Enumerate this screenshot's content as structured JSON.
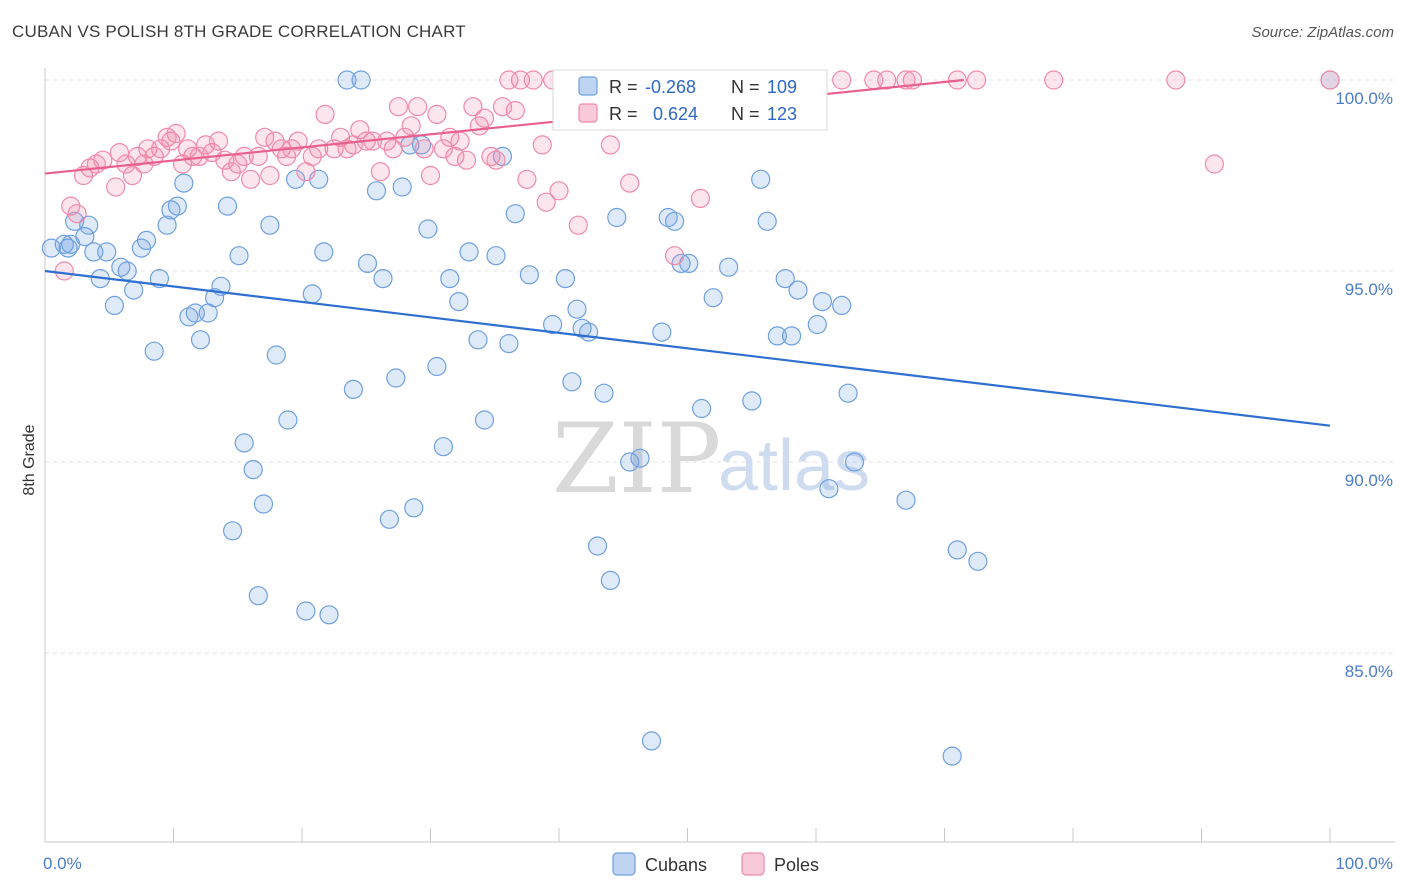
{
  "title": "CUBAN VS POLISH 8TH GRADE CORRELATION CHART",
  "source": "Source: ZipAtlas.com",
  "watermark": {
    "zip": "ZIP",
    "atlas": "atlas"
  },
  "colors": {
    "cubans": "#6fa0e0",
    "cubans_fill": "rgba(111,160,224,0.22)",
    "cubans_line": "#2e6fd0",
    "poles": "#f08aaa",
    "poles_fill": "rgba(240,138,170,0.22)",
    "poles_line": "#e8608e",
    "grid": "#e3e3e3",
    "tick_text": "#4a7cc9"
  },
  "chart_data": {
    "type": "scatter",
    "title": "CUBAN VS POLISH 8TH GRADE CORRELATION CHART",
    "xlabel": "",
    "ylabel": "8th Grade",
    "xlim": [
      0,
      100
    ],
    "ylim": [
      80.5,
      100.8
    ],
    "x_tick_labels": [
      "0.0%",
      "100.0%"
    ],
    "y_ticks": [
      85,
      90,
      95,
      100
    ],
    "y_tick_labels": [
      "85.0%",
      "90.0%",
      "95.0%",
      "100.0%"
    ],
    "grid": true,
    "legend_position": "bottom-center",
    "stats": [
      {
        "series": "Cubans",
        "r_label": "R =",
        "r": "-0.268",
        "n_label": "N =",
        "n": "109"
      },
      {
        "series": "Poles",
        "r_label": "R =",
        "r": "0.624",
        "n_label": "N =",
        "n": "123"
      }
    ],
    "series": [
      {
        "name": "Cubans",
        "trend": {
          "x": [
            0,
            100
          ],
          "y": [
            95.0,
            90.95
          ]
        },
        "points": [
          [
            0.5,
            95.6
          ],
          [
            1.5,
            95.7
          ],
          [
            1.8,
            95.6
          ],
          [
            2.3,
            96.3
          ],
          [
            3.1,
            95.9
          ],
          [
            3.4,
            96.2
          ],
          [
            3.8,
            95.5
          ],
          [
            4.3,
            94.8
          ],
          [
            4.8,
            95.5
          ],
          [
            5.4,
            94.1
          ],
          [
            5.9,
            95.1
          ],
          [
            6.4,
            95.0
          ],
          [
            6.9,
            94.5
          ],
          [
            7.5,
            95.6
          ],
          [
            7.9,
            95.8
          ],
          [
            8.5,
            92.9
          ],
          [
            8.9,
            94.8
          ],
          [
            9.5,
            96.2
          ],
          [
            9.8,
            96.6
          ],
          [
            10.3,
            96.7
          ],
          [
            10.8,
            97.3
          ],
          [
            11.2,
            93.8
          ],
          [
            11.7,
            93.9
          ],
          [
            12.1,
            93.2
          ],
          [
            12.7,
            93.9
          ],
          [
            13.2,
            94.3
          ],
          [
            13.7,
            94.6
          ],
          [
            14.2,
            96.7
          ],
          [
            14.6,
            88.2
          ],
          [
            15.1,
            95.4
          ],
          [
            15.5,
            90.5
          ],
          [
            16.2,
            89.8
          ],
          [
            16.6,
            86.5
          ],
          [
            17.0,
            88.9
          ],
          [
            17.5,
            96.2
          ],
          [
            18.0,
            92.8
          ],
          [
            18.9,
            91.1
          ],
          [
            19.5,
            97.4
          ],
          [
            20.3,
            86.1
          ],
          [
            20.8,
            94.4
          ],
          [
            21.3,
            97.4
          ],
          [
            21.7,
            95.5
          ],
          [
            22.1,
            86.0
          ],
          [
            23.5,
            100.0
          ],
          [
            24.0,
            91.9
          ],
          [
            24.6,
            100.0
          ],
          [
            25.1,
            95.2
          ],
          [
            25.8,
            97.1
          ],
          [
            26.3,
            94.8
          ],
          [
            26.8,
            88.5
          ],
          [
            27.3,
            92.2
          ],
          [
            27.8,
            97.2
          ],
          [
            28.4,
            98.3
          ],
          [
            28.7,
            88.8
          ],
          [
            29.3,
            98.3
          ],
          [
            29.8,
            96.1
          ],
          [
            30.5,
            92.5
          ],
          [
            31.0,
            90.4
          ],
          [
            31.5,
            94.8
          ],
          [
            32.2,
            94.2
          ],
          [
            33.0,
            95.5
          ],
          [
            33.7,
            93.2
          ],
          [
            34.2,
            91.1
          ],
          [
            35.1,
            95.4
          ],
          [
            35.6,
            98.0
          ],
          [
            36.1,
            93.1
          ],
          [
            36.6,
            96.5
          ],
          [
            37.7,
            94.9
          ],
          [
            39.5,
            93.6
          ],
          [
            40.5,
            94.8
          ],
          [
            41.0,
            92.1
          ],
          [
            41.4,
            94.0
          ],
          [
            41.8,
            93.5
          ],
          [
            42.3,
            93.4
          ],
          [
            43.0,
            87.8
          ],
          [
            43.5,
            91.8
          ],
          [
            44.0,
            86.9
          ],
          [
            44.5,
            96.4
          ],
          [
            45.5,
            90.0
          ],
          [
            46.3,
            90.1
          ],
          [
            47.2,
            82.7
          ],
          [
            48.0,
            93.4
          ],
          [
            48.5,
            96.4
          ],
          [
            49.0,
            96.3
          ],
          [
            49.5,
            95.2
          ],
          [
            50.1,
            95.2
          ],
          [
            51.1,
            91.4
          ],
          [
            52.0,
            94.3
          ],
          [
            53.2,
            95.1
          ],
          [
            55.0,
            91.6
          ],
          [
            55.7,
            97.4
          ],
          [
            56.2,
            96.3
          ],
          [
            57.0,
            93.3
          ],
          [
            57.6,
            94.8
          ],
          [
            58.1,
            93.3
          ],
          [
            58.6,
            94.5
          ],
          [
            60.1,
            93.6
          ],
          [
            60.5,
            94.2
          ],
          [
            61.0,
            89.3
          ],
          [
            62.0,
            94.1
          ],
          [
            62.5,
            91.8
          ],
          [
            63.0,
            90.0
          ],
          [
            67.0,
            89.0
          ],
          [
            70.6,
            82.3
          ],
          [
            71.0,
            87.7
          ],
          [
            72.6,
            87.4
          ],
          [
            100.0,
            100.0
          ],
          [
            2.0,
            95.7
          ]
        ]
      },
      {
        "name": "Poles",
        "trend": {
          "x": [
            0,
            71.5
          ],
          "y": [
            97.55,
            100.0
          ]
        },
        "points": [
          [
            1.5,
            95.0
          ],
          [
            2.0,
            96.7
          ],
          [
            2.5,
            96.5
          ],
          [
            3.0,
            97.5
          ],
          [
            3.5,
            97.7
          ],
          [
            4.0,
            97.8
          ],
          [
            4.5,
            97.9
          ],
          [
            5.5,
            97.2
          ],
          [
            5.8,
            98.1
          ],
          [
            6.3,
            97.8
          ],
          [
            6.8,
            97.5
          ],
          [
            7.2,
            98.0
          ],
          [
            7.7,
            97.8
          ],
          [
            8.0,
            98.2
          ],
          [
            8.5,
            98.0
          ],
          [
            9.0,
            98.2
          ],
          [
            9.5,
            98.5
          ],
          [
            9.8,
            98.4
          ],
          [
            10.2,
            98.6
          ],
          [
            10.7,
            97.8
          ],
          [
            11.1,
            98.2
          ],
          [
            11.5,
            98.0
          ],
          [
            12.0,
            98.0
          ],
          [
            12.5,
            98.3
          ],
          [
            13.0,
            98.1
          ],
          [
            13.5,
            98.4
          ],
          [
            14.0,
            97.9
          ],
          [
            14.5,
            97.6
          ],
          [
            15.0,
            97.8
          ],
          [
            15.5,
            98.0
          ],
          [
            16.0,
            97.4
          ],
          [
            16.6,
            98.0
          ],
          [
            17.1,
            98.5
          ],
          [
            17.5,
            97.5
          ],
          [
            17.9,
            98.4
          ],
          [
            18.4,
            98.2
          ],
          [
            18.8,
            98.0
          ],
          [
            19.2,
            98.2
          ],
          [
            19.7,
            98.4
          ],
          [
            20.3,
            97.6
          ],
          [
            20.8,
            98.0
          ],
          [
            21.3,
            98.2
          ],
          [
            21.8,
            99.1
          ],
          [
            22.5,
            98.2
          ],
          [
            23.0,
            98.5
          ],
          [
            23.5,
            98.2
          ],
          [
            24.0,
            98.3
          ],
          [
            24.5,
            98.7
          ],
          [
            25.0,
            98.4
          ],
          [
            25.5,
            98.4
          ],
          [
            26.1,
            97.6
          ],
          [
            26.6,
            98.4
          ],
          [
            27.1,
            98.2
          ],
          [
            27.5,
            99.3
          ],
          [
            28.0,
            98.5
          ],
          [
            28.5,
            98.8
          ],
          [
            29.0,
            99.3
          ],
          [
            29.5,
            98.2
          ],
          [
            30.0,
            97.5
          ],
          [
            30.5,
            99.1
          ],
          [
            31.0,
            98.2
          ],
          [
            31.5,
            98.5
          ],
          [
            31.9,
            98.0
          ],
          [
            32.3,
            98.4
          ],
          [
            32.8,
            97.9
          ],
          [
            33.3,
            99.3
          ],
          [
            33.8,
            98.8
          ],
          [
            34.2,
            99.0
          ],
          [
            34.7,
            98.0
          ],
          [
            35.1,
            97.9
          ],
          [
            35.6,
            99.3
          ],
          [
            36.1,
            100.0
          ],
          [
            36.6,
            99.2
          ],
          [
            37.0,
            100.0
          ],
          [
            37.5,
            97.4
          ],
          [
            38.0,
            100.0
          ],
          [
            38.7,
            98.3
          ],
          [
            39.0,
            96.8
          ],
          [
            39.5,
            100.0
          ],
          [
            40.0,
            97.1
          ],
          [
            40.5,
            100.0
          ],
          [
            41.0,
            99.6
          ],
          [
            41.5,
            96.2
          ],
          [
            42.0,
            100.0
          ],
          [
            42.5,
            100.0
          ],
          [
            43.0,
            100.0
          ],
          [
            43.5,
            100.0
          ],
          [
            44.0,
            98.3
          ],
          [
            44.5,
            100.0
          ],
          [
            45.0,
            100.0
          ],
          [
            45.5,
            97.3
          ],
          [
            46.0,
            100.0
          ],
          [
            46.5,
            100.0
          ],
          [
            47.0,
            100.0
          ],
          [
            47.5,
            100.0
          ],
          [
            48.0,
            100.0
          ],
          [
            48.5,
            100.0
          ],
          [
            49.0,
            95.4
          ],
          [
            49.5,
            100.0
          ],
          [
            50.0,
            100.0
          ],
          [
            50.5,
            100.0
          ],
          [
            51.0,
            96.9
          ],
          [
            51.5,
            100.0
          ],
          [
            52.0,
            100.0
          ],
          [
            52.5,
            100.0
          ],
          [
            53.0,
            100.0
          ],
          [
            53.5,
            100.0
          ],
          [
            54.0,
            100.0
          ],
          [
            55.0,
            100.0
          ],
          [
            56.0,
            100.0
          ],
          [
            57.0,
            100.0
          ],
          [
            58.0,
            100.0
          ],
          [
            60.0,
            100.0
          ],
          [
            62.0,
            100.0
          ],
          [
            64.5,
            100.0
          ],
          [
            65.5,
            100.0
          ],
          [
            67.0,
            100.0
          ],
          [
            67.5,
            100.0
          ],
          [
            71.0,
            100.0
          ],
          [
            72.5,
            100.0
          ],
          [
            78.5,
            100.0
          ],
          [
            88.0,
            100.0
          ],
          [
            100.0,
            100.0
          ],
          [
            91.0,
            97.8
          ]
        ]
      }
    ]
  }
}
